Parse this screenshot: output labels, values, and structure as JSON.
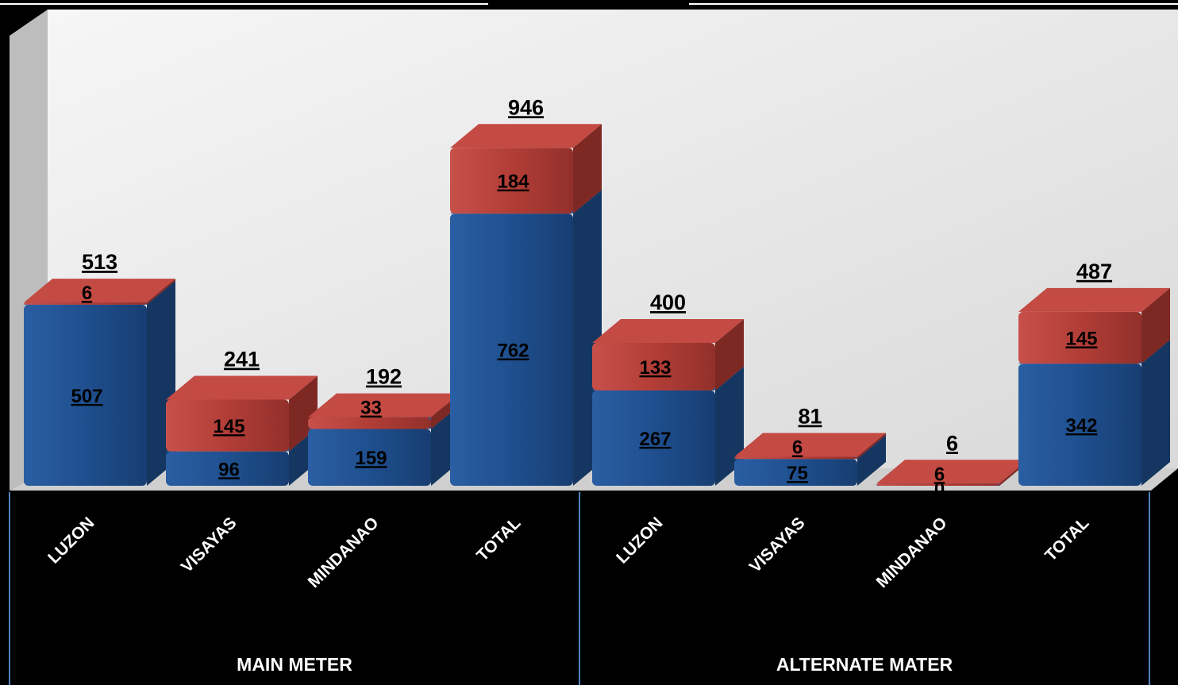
{
  "chart_data": {
    "type": "bar",
    "stacked": true,
    "three_d": true,
    "groups": [
      {
        "name": "MAIN METER",
        "categories": [
          "LUZON",
          "VISAYAS",
          "MINDANAO",
          "TOTAL"
        ],
        "bottom": [
          507,
          96,
          159,
          762
        ],
        "top": [
          6,
          145,
          33,
          184
        ],
        "totals": [
          513,
          241,
          192,
          946
        ]
      },
      {
        "name": "ALTERNATE MATER",
        "categories": [
          "LUZON",
          "VISAYAS",
          "MINDANAO",
          "TOTAL"
        ],
        "bottom": [
          267,
          75,
          0,
          342
        ],
        "top": [
          133,
          6,
          6,
          145
        ],
        "totals": [
          400,
          81,
          6,
          487
        ]
      }
    ],
    "ylim": [
      0,
      1000
    ],
    "grid": false,
    "legend": "none",
    "colors": {
      "bottom": "#1f4e8c",
      "top": "#b03a35",
      "background": "#000000",
      "wall": "#ececec"
    }
  }
}
